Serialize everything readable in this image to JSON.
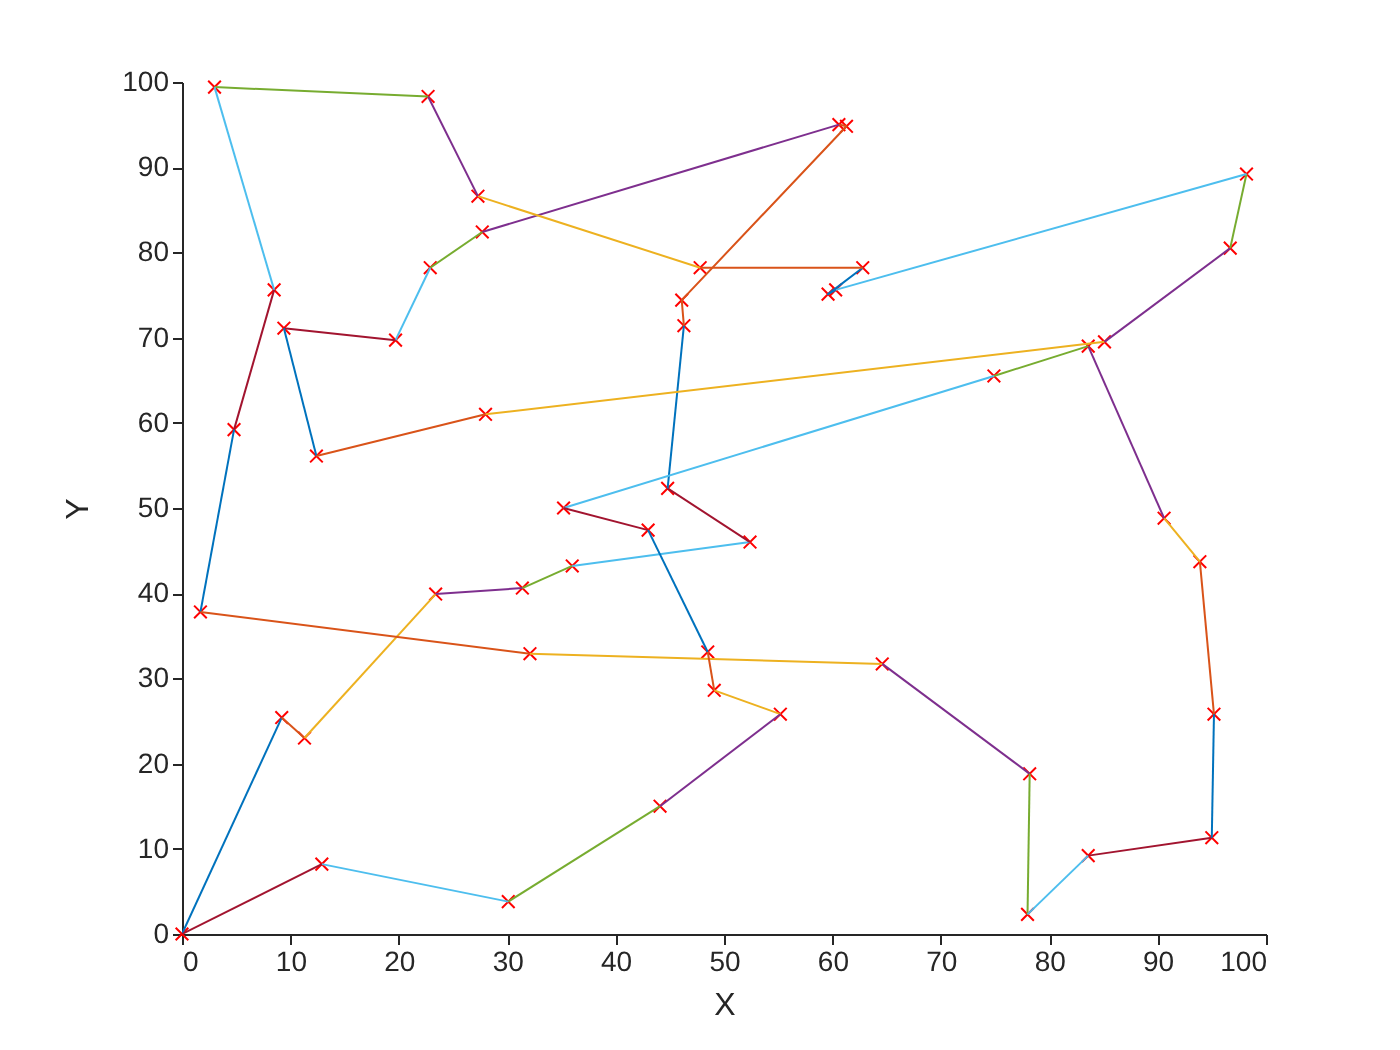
{
  "chart_data": {
    "type": "line",
    "xlabel": "X",
    "ylabel": "Y",
    "xlim": [
      0,
      100
    ],
    "ylim": [
      0,
      100
    ],
    "xticks": [
      0,
      10,
      20,
      30,
      40,
      50,
      60,
      70,
      80,
      90,
      100
    ],
    "yticks": [
      0,
      10,
      20,
      30,
      40,
      50,
      60,
      70,
      80,
      90,
      100
    ],
    "grid": false,
    "series": [
      {
        "color": "#0072bd",
        "x": [
          0,
          9.2
        ],
        "values": [
          0,
          25.4
        ]
      },
      {
        "color": "#d95319",
        "x": [
          9.2,
          11.3
        ],
        "values": [
          25.4,
          23.0
        ]
      },
      {
        "color": "#edb120",
        "x": [
          11.3,
          23.4
        ],
        "values": [
          23.0,
          39.9
        ]
      },
      {
        "color": "#7e2f8e",
        "x": [
          23.4,
          31.4
        ],
        "values": [
          39.9,
          40.6
        ]
      },
      {
        "color": "#77ac30",
        "x": [
          31.4,
          36.0
        ],
        "values": [
          40.6,
          43.2
        ]
      },
      {
        "color": "#4dbeee",
        "x": [
          36.0,
          52.4
        ],
        "values": [
          43.2,
          46.0
        ]
      },
      {
        "color": "#a2142f",
        "x": [
          52.4,
          44.8
        ],
        "values": [
          46.0,
          52.3
        ]
      },
      {
        "color": "#0072bd",
        "x": [
          44.8,
          46.3
        ],
        "values": [
          52.3,
          71.4
        ]
      },
      {
        "color": "#d95319",
        "x": [
          46.3,
          46.1,
          61.3,
          60.6
        ],
        "values": [
          71.4,
          74.4,
          94.8,
          95.0
        ]
      },
      {
        "color": "#7e2f8e",
        "x": [
          60.6,
          27.7
        ],
        "values": [
          95.0,
          82.4
        ]
      },
      {
        "color": "#77ac30",
        "x": [
          27.7,
          22.9
        ],
        "values": [
          82.4,
          78.2
        ]
      },
      {
        "color": "#4dbeee",
        "x": [
          22.9,
          19.7
        ],
        "values": [
          78.2,
          69.7
        ]
      },
      {
        "color": "#a2142f",
        "x": [
          19.7,
          9.4
        ],
        "values": [
          69.7,
          71.1
        ]
      },
      {
        "color": "#0072bd",
        "x": [
          9.4,
          12.4
        ],
        "values": [
          71.1,
          56.1
        ]
      },
      {
        "color": "#d95319",
        "x": [
          12.4,
          28.0
        ],
        "values": [
          56.1,
          61.0
        ]
      },
      {
        "color": "#edb120",
        "x": [
          28.0,
          85.1
        ],
        "values": [
          61.0,
          69.5
        ]
      },
      {
        "color": "#7e2f8e",
        "x": [
          85.1,
          96.7
        ],
        "values": [
          69.5,
          80.5
        ]
      },
      {
        "color": "#77ac30",
        "x": [
          96.7,
          98.2
        ],
        "values": [
          80.5,
          89.2
        ]
      },
      {
        "color": "#4dbeee",
        "x": [
          98.2,
          60.3
        ],
        "values": [
          89.2,
          75.6
        ]
      },
      {
        "color": "#0072bd",
        "x": [
          60.3,
          59.6,
          62.8
        ],
        "values": [
          75.6,
          75.1,
          78.2
        ]
      },
      {
        "color": "#d95319",
        "x": [
          62.8,
          47.8
        ],
        "values": [
          78.2,
          78.2
        ]
      },
      {
        "color": "#edb120",
        "x": [
          47.8,
          27.3
        ],
        "values": [
          78.2,
          86.6
        ]
      },
      {
        "color": "#7e2f8e",
        "x": [
          27.3,
          22.7
        ],
        "values": [
          86.6,
          98.3
        ]
      },
      {
        "color": "#77ac30",
        "x": [
          22.7,
          3.0
        ],
        "values": [
          98.3,
          99.4
        ]
      },
      {
        "color": "#4dbeee",
        "x": [
          3.0,
          8.5
        ],
        "values": [
          99.4,
          75.6
        ]
      },
      {
        "color": "#a2142f",
        "x": [
          8.5,
          4.8
        ],
        "values": [
          75.6,
          59.2
        ]
      },
      {
        "color": "#0072bd",
        "x": [
          4.8,
          1.7
        ],
        "values": [
          59.2,
          37.8
        ]
      },
      {
        "color": "#d95319",
        "x": [
          1.7,
          32.1
        ],
        "values": [
          37.8,
          32.9
        ]
      },
      {
        "color": "#edb120",
        "x": [
          32.1,
          64.6
        ],
        "values": [
          32.9,
          31.7
        ]
      },
      {
        "color": "#7e2f8e",
        "x": [
          64.6,
          78.2
        ],
        "values": [
          31.7,
          18.8
        ]
      },
      {
        "color": "#77ac30",
        "x": [
          78.2,
          78.0
        ],
        "values": [
          18.8,
          2.3
        ]
      },
      {
        "color": "#4dbeee",
        "x": [
          78.0,
          83.6
        ],
        "values": [
          2.3,
          9.2
        ]
      },
      {
        "color": "#a2142f",
        "x": [
          83.6,
          95.0
        ],
        "values": [
          9.2,
          11.3
        ]
      },
      {
        "color": "#0072bd",
        "x": [
          95.0,
          95.2
        ],
        "values": [
          11.3,
          25.8
        ]
      },
      {
        "color": "#d95319",
        "x": [
          95.2,
          93.9
        ],
        "values": [
          25.8,
          43.7
        ]
      },
      {
        "color": "#edb120",
        "x": [
          93.9,
          90.6
        ],
        "values": [
          43.7,
          48.8
        ]
      },
      {
        "color": "#7e2f8e",
        "x": [
          90.6,
          83.6
        ],
        "values": [
          48.8,
          69.0
        ]
      },
      {
        "color": "#77ac30",
        "x": [
          83.6,
          74.9
        ],
        "values": [
          69.0,
          65.5
        ]
      },
      {
        "color": "#4dbeee",
        "x": [
          74.9,
          35.2
        ],
        "values": [
          65.5,
          50.0
        ]
      },
      {
        "color": "#a2142f",
        "x": [
          35.2,
          43.0
        ],
        "values": [
          50.0,
          47.4
        ]
      },
      {
        "color": "#0072bd",
        "x": [
          43.0,
          48.5
        ],
        "values": [
          47.4,
          33.1
        ]
      },
      {
        "color": "#d95319",
        "x": [
          48.5,
          49.1
        ],
        "values": [
          33.1,
          28.6
        ]
      },
      {
        "color": "#edb120",
        "x": [
          49.1,
          55.2
        ],
        "values": [
          28.6,
          25.8
        ]
      },
      {
        "color": "#7e2f8e",
        "x": [
          55.2,
          44.1
        ],
        "values": [
          25.8,
          15.0
        ]
      },
      {
        "color": "#77ac30",
        "x": [
          44.1,
          30.1
        ],
        "values": [
          15.0,
          3.8
        ]
      },
      {
        "color": "#4dbeee",
        "x": [
          30.1,
          12.9
        ],
        "values": [
          3.8,
          8.2
        ]
      },
      {
        "color": "#a2142f",
        "x": [
          12.9,
          0
        ],
        "values": [
          8.2,
          0
        ]
      },
      {
        "type": "scatter",
        "color": "#ff0000",
        "marker": "cross",
        "x": [
          0,
          9.2,
          11.3,
          23.4,
          31.4,
          36.0,
          52.4,
          44.8,
          46.3,
          46.1,
          61.3,
          60.6,
          27.7,
          22.9,
          19.7,
          9.4,
          12.4,
          28.0,
          85.1,
          96.7,
          98.2,
          60.3,
          59.6,
          62.8,
          47.8,
          27.3,
          22.7,
          3.0,
          8.5,
          4.8,
          1.7,
          32.1,
          64.6,
          78.2,
          78.0,
          83.6,
          95.0,
          95.2,
          93.9,
          90.6,
          83.6,
          74.9,
          35.2,
          43.0,
          48.5,
          49.1,
          55.2,
          44.1,
          30.1,
          12.9
        ],
        "values": [
          0,
          25.4,
          23.0,
          39.9,
          40.6,
          43.2,
          46.0,
          52.3,
          71.4,
          74.4,
          94.8,
          95.0,
          82.4,
          78.2,
          69.7,
          71.1,
          56.1,
          61.0,
          69.5,
          80.5,
          89.2,
          75.6,
          75.1,
          78.2,
          78.2,
          86.6,
          98.3,
          99.4,
          75.6,
          59.2,
          37.8,
          32.9,
          31.7,
          18.8,
          2.3,
          9.2,
          11.3,
          25.8,
          43.7,
          48.8,
          69.0,
          65.5,
          50.0,
          47.4,
          33.1,
          28.6,
          25.8,
          15.0,
          3.8,
          8.2
        ]
      }
    ]
  }
}
